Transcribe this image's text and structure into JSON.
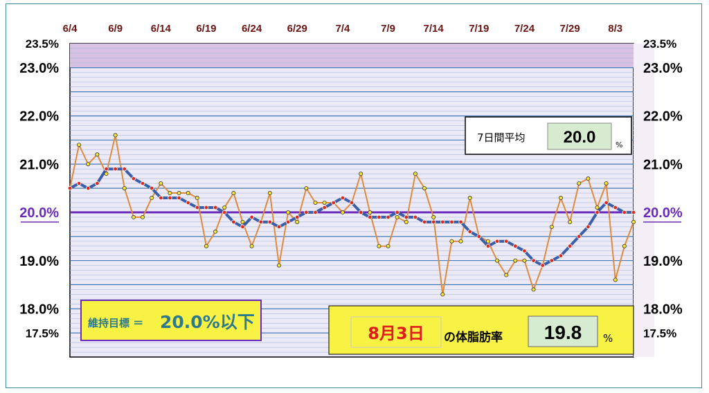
{
  "chart_data": {
    "type": "line",
    "x_labels": [
      "6/4",
      "6/9",
      "6/14",
      "6/19",
      "6/24",
      "6/29",
      "7/4",
      "7/9",
      "7/14",
      "7/19",
      "7/24",
      "7/29",
      "8/3"
    ],
    "y_ticks": [
      {
        "value": 23.5,
        "label": "23.5%",
        "style": "small"
      },
      {
        "value": 23.0,
        "label": "23.0%",
        "style": "big"
      },
      {
        "value": 22.0,
        "label": "22.0%",
        "style": "big"
      },
      {
        "value": 21.0,
        "label": "21.0%",
        "style": "big"
      },
      {
        "value": 20.0,
        "label": "20.0%",
        "style": "target"
      },
      {
        "value": 19.0,
        "label": "19.0%",
        "style": "big"
      },
      {
        "value": 18.0,
        "label": "18.0%",
        "style": "big"
      },
      {
        "value": 17.5,
        "label": "17.5%",
        "style": "small"
      }
    ],
    "ylim": [
      17.0,
      23.5
    ],
    "target": 20.0,
    "series": [
      {
        "values": [
          20.5,
          21.4,
          21.0,
          21.2,
          20.8,
          21.6,
          20.5,
          19.9,
          19.9,
          20.3,
          20.6,
          20.4,
          20.4,
          20.4,
          20.3,
          19.3,
          19.6,
          20.1,
          20.4,
          19.8,
          19.3,
          19.8,
          20.4,
          18.9,
          20.0,
          19.8,
          20.5,
          20.2,
          20.2,
          20.2,
          20.0,
          20.2,
          20.8,
          20.0,
          19.3,
          19.3,
          19.9,
          19.8,
          20.8,
          20.5,
          19.9,
          18.3,
          19.4,
          19.4,
          20.3,
          19.5,
          19.4,
          19.0,
          18.7,
          19.0,
          19.0,
          18.4,
          18.9,
          19.7,
          20.3,
          19.8,
          20.6,
          20.7,
          20.1,
          20.6,
          18.6,
          19.3,
          19.8
        ]
      },
      {
        "values": [
          20.5,
          20.6,
          20.5,
          20.6,
          20.9,
          20.9,
          20.9,
          20.7,
          20.6,
          20.5,
          20.3,
          20.3,
          20.3,
          20.2,
          20.1,
          20.1,
          20.1,
          20.0,
          19.8,
          19.7,
          19.9,
          19.8,
          19.8,
          19.7,
          19.8,
          19.9,
          20.0,
          20.0,
          20.1,
          20.2,
          20.3,
          20.2,
          20.0,
          19.9,
          19.9,
          19.9,
          20.0,
          19.9,
          19.9,
          19.8,
          19.8,
          19.8,
          19.8,
          19.8,
          19.6,
          19.5,
          19.3,
          19.4,
          19.4,
          19.3,
          19.2,
          19.0,
          18.9,
          19.0,
          19.1,
          19.3,
          19.5,
          19.7,
          20.0,
          20.2,
          20.1,
          20.0,
          20.0
        ]
      }
    ],
    "avg_box": {
      "label": "7日間平均",
      "value": "20.0",
      "unit": "%"
    },
    "goal_box": {
      "text": "維持目標 ＝ ",
      "value": "20.0%以下"
    },
    "today_box": {
      "date": "8月3日",
      "label": "の体脂肪率",
      "value": "19.8",
      "unit": "%"
    },
    "colors": {
      "band_fill": "#d7c2e3",
      "plot_fill": "#eceaf6",
      "grid_major": "#2f6fb0",
      "grid_minor": "#a9b8de",
      "target_line": "#6a2bbd",
      "daily_line": "#e08a3c",
      "daily_dot": "#f5e530",
      "avg_line": "#3a5fa8",
      "avg_dot": "#d92a1e",
      "x_label": "#6b1414",
      "target_label": "#6a2bbd"
    }
  }
}
